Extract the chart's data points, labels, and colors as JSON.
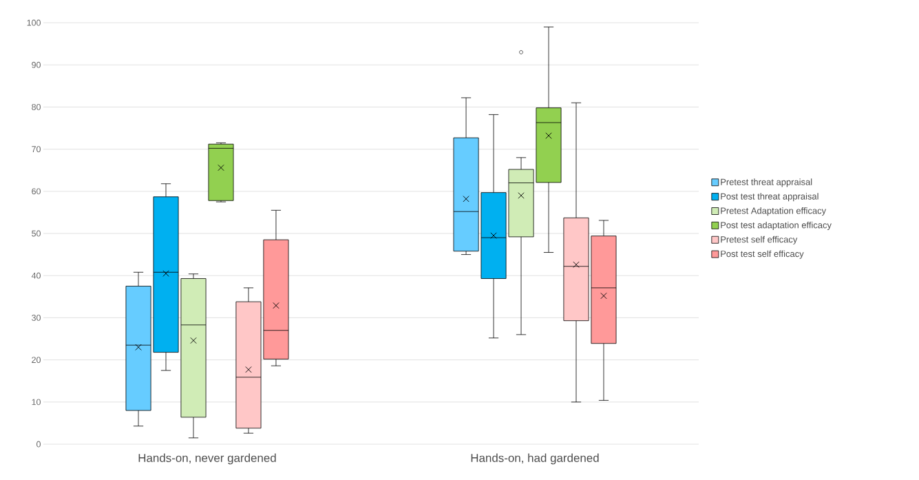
{
  "chart_data": {
    "type": "box",
    "categories": [
      "Hands-on, never gardened",
      "Hands-on, had gardened"
    ],
    "ylim": [
      0,
      100
    ],
    "yticks": [
      0,
      10,
      20,
      30,
      40,
      50,
      60,
      70,
      80,
      90,
      100
    ],
    "grid": "y",
    "legend": "right",
    "series": [
      {
        "name": "Pretest threat appraisal",
        "color": "#66ccff",
        "boxes": [
          {
            "low": 4.3,
            "q1": 8,
            "median": 23.5,
            "q3": 37.5,
            "high": 40.8,
            "mean": 23
          },
          {
            "low": 45,
            "q1": 45.8,
            "median": 55.2,
            "q3": 72.7,
            "high": 82.2,
            "mean": 58.2
          }
        ]
      },
      {
        "name": "Post test threat appraisal",
        "color": "#00b0f0",
        "boxes": [
          {
            "low": 17.5,
            "q1": 21.8,
            "median": 40.8,
            "q3": 58.7,
            "high": 61.8,
            "mean": 40.5
          },
          {
            "low": 25.2,
            "q1": 39.3,
            "median": 49,
            "q3": 59.7,
            "high": 78.2,
            "mean": 49.5
          }
        ]
      },
      {
        "name": "Pretest Adaptation efficacy",
        "color": "#d0ecb6",
        "boxes": [
          {
            "low": 1.5,
            "q1": 6.4,
            "median": 28.3,
            "q3": 39.3,
            "high": 40.4,
            "mean": 24.6
          },
          {
            "low": 26,
            "q1": 49.2,
            "median": 62,
            "q3": 65.2,
            "high": 68,
            "mean": 59,
            "outliers": [
              93
            ]
          }
        ]
      },
      {
        "name": "Post test adaptation efficacy",
        "color": "#92d050",
        "boxes": [
          {
            "low": 57.5,
            "q1": 57.8,
            "median": 70.2,
            "q3": 71.2,
            "high": 71.5,
            "mean": 65.6
          },
          {
            "low": 45.5,
            "q1": 62.1,
            "median": 76.3,
            "q3": 79.8,
            "high": 99,
            "mean": 73.2
          }
        ]
      },
      {
        "name": "Pretest self efficacy",
        "color": "#ffc7c7",
        "boxes": [
          {
            "low": 2.6,
            "q1": 3.8,
            "median": 15.9,
            "q3": 33.8,
            "high": 37.1,
            "mean": 17.7
          },
          {
            "low": 10,
            "q1": 29.3,
            "median": 42.2,
            "q3": 53.7,
            "high": 81,
            "mean": 42.6
          }
        ]
      },
      {
        "name": "Post test self efficacy",
        "color": "#ff9999",
        "boxes": [
          {
            "low": 18.6,
            "q1": 20.2,
            "median": 27,
            "q3": 48.5,
            "high": 55.5,
            "mean": 32.9
          },
          {
            "low": 10.4,
            "q1": 23.9,
            "median": 37.1,
            "q3": 49.4,
            "high": 53.1,
            "mean": 35.2
          }
        ]
      }
    ]
  }
}
